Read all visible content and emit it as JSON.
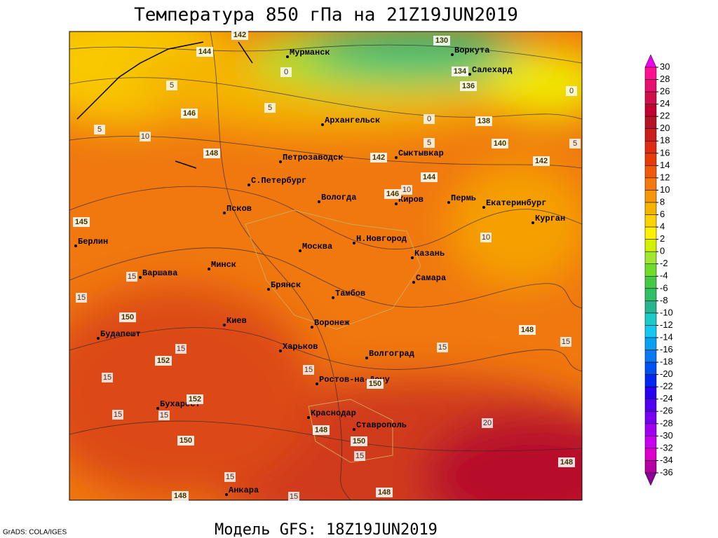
{
  "title": "Температура 850 гПа на 21Z19JUN2019",
  "subtitle": "Модель GFS: 18Z19JUN2019",
  "credit": "GrADS: COLA/IGES",
  "cities": [
    "Мурманск",
    "Воркута",
    "Салехард",
    "Архангельск",
    "Петрозаводск",
    "Сыктывкар",
    "С.Петербург",
    "Вологда",
    "Киров",
    "Пермь",
    "Екатеринбург",
    "Курган",
    "Псков",
    "Берлин",
    "Москва",
    "Н.Новгород",
    "Казань",
    "Варшава",
    "Минск",
    "Брянск",
    "Самара",
    "Тамбов",
    "Киев",
    "Воронеж",
    "Будапешт",
    "Харьков",
    "Волгоград",
    "Ростов-на-Дону",
    "Бухарест",
    "Краснодар",
    "Ставрополь",
    "Анкара"
  ],
  "height_labels": [
    142,
    130,
    144,
    134,
    136,
    146,
    138,
    140,
    148,
    142,
    142,
    144,
    146,
    145,
    148,
    150,
    152,
    152,
    150,
    150,
    148,
    150,
    148,
    148,
    148
  ],
  "temperature_labels": [
    0,
    5,
    5,
    5,
    10,
    0,
    0,
    5,
    5,
    10,
    10,
    15,
    15,
    15,
    15,
    15,
    15,
    15,
    15,
    15,
    20,
    15,
    15,
    15
  ],
  "colorbar": {
    "labels": [
      30,
      28,
      26,
      24,
      22,
      20,
      18,
      16,
      14,
      12,
      10,
      8,
      6,
      4,
      2,
      0,
      -2,
      -4,
      -6,
      -8,
      -10,
      -12,
      -14,
      -16,
      -18,
      -20,
      -22,
      -24,
      -26,
      -28,
      -30,
      -32,
      -34,
      -36
    ],
    "colors": [
      "#ee00ee",
      "#ff1090",
      "#e8106e",
      "#d0104a",
      "#c00030",
      "#b41428",
      "#c81e1e",
      "#dc2d14",
      "#e63c0a",
      "#f05a0a",
      "#f5780a",
      "#f5960a",
      "#f5b400",
      "#fad200",
      "#fff000",
      "#d2f000",
      "#a0e632",
      "#6edc28",
      "#46c846",
      "#32be64",
      "#28b48c",
      "#1ec8c8",
      "#14c8f0",
      "#0aa0f0",
      "#0a78f0",
      "#0050f0",
      "#0028f0",
      "#2800f0",
      "#5000f0",
      "#7800f0",
      "#a000f0",
      "#c800f0",
      "#dc00c8",
      "#b400a0",
      "#8c0096"
    ]
  }
}
